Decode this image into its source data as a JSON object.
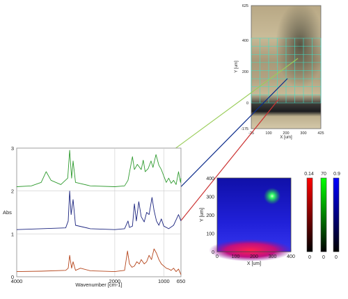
{
  "spectrum_panel": {
    "xlabel": "Wavenumber [cm-1]",
    "ylabel": "Abs",
    "x_ticks": [
      "4000",
      "2000",
      "1000",
      "650"
    ],
    "y_ticks": [
      "0",
      "1",
      "2",
      "3"
    ]
  },
  "micrograph": {
    "xlabel": "X [um]",
    "ylabel": "Y [um]",
    "x_ticks": [
      "-25",
      "100",
      "200",
      "300",
      "425"
    ],
    "y_ticks": [
      "625",
      "400",
      "200",
      "0",
      "-175"
    ]
  },
  "map_panel": {
    "xlabel": "X [um]",
    "ylabel": "Y [um]",
    "x_ticks": [
      "0",
      "100",
      "200",
      "300",
      "400"
    ],
    "y_ticks": [
      "400",
      "300",
      "200",
      "100",
      "0"
    ]
  },
  "colorbars": [
    {
      "color": "#ff0000",
      "max_label": "0.14",
      "min_label": "0"
    },
    {
      "color": "#00ff00",
      "max_label": "70",
      "min_label": "0"
    },
    {
      "color": "#0000ff",
      "max_label": "0.9",
      "min_label": "0"
    }
  ],
  "arrows": [
    {
      "color": "#9acd5a"
    },
    {
      "color": "#0a2a8a"
    },
    {
      "color": "#cc3333"
    }
  ],
  "chart_data": {
    "type": "line",
    "xlabel": "Wavenumber [cm-1]",
    "ylabel": "Abs",
    "xlim": [
      4000,
      650
    ],
    "ylim": [
      0,
      3
    ],
    "x_reversed": true,
    "series": [
      {
        "color": "#2e9a2e",
        "points": [
          [
            4000,
            2.1
          ],
          [
            3700,
            2.12
          ],
          [
            3500,
            2.2
          ],
          [
            3400,
            2.45
          ],
          [
            3300,
            2.25
          ],
          [
            3100,
            2.15
          ],
          [
            2960,
            2.3
          ],
          [
            2920,
            2.95
          ],
          [
            2880,
            2.3
          ],
          [
            2850,
            2.7
          ],
          [
            2800,
            2.2
          ],
          [
            2500,
            2.12
          ],
          [
            2000,
            2.1
          ],
          [
            1800,
            2.12
          ],
          [
            1730,
            2.25
          ],
          [
            1640,
            2.8
          ],
          [
            1600,
            2.5
          ],
          [
            1540,
            2.62
          ],
          [
            1460,
            2.5
          ],
          [
            1420,
            2.72
          ],
          [
            1380,
            2.45
          ],
          [
            1320,
            2.52
          ],
          [
            1260,
            2.7
          ],
          [
            1220,
            2.55
          ],
          [
            1160,
            2.85
          ],
          [
            1100,
            2.6
          ],
          [
            1050,
            2.5
          ],
          [
            1000,
            2.35
          ],
          [
            950,
            2.2
          ],
          [
            900,
            2.3
          ],
          [
            850,
            2.18
          ],
          [
            800,
            2.25
          ],
          [
            750,
            2.15
          ],
          [
            700,
            2.45
          ],
          [
            660,
            2.2
          ],
          [
            650,
            2.3
          ]
        ]
      },
      {
        "color": "#1a237e",
        "points": [
          [
            4000,
            1.1
          ],
          [
            3500,
            1.12
          ],
          [
            3000,
            1.14
          ],
          [
            2950,
            1.3
          ],
          [
            2920,
            2.0
          ],
          [
            2890,
            1.45
          ],
          [
            2850,
            1.8
          ],
          [
            2800,
            1.2
          ],
          [
            2500,
            1.12
          ],
          [
            2000,
            1.1
          ],
          [
            1800,
            1.12
          ],
          [
            1730,
            1.3
          ],
          [
            1700,
            1.15
          ],
          [
            1640,
            1.18
          ],
          [
            1600,
            1.7
          ],
          [
            1560,
            1.3
          ],
          [
            1510,
            1.75
          ],
          [
            1460,
            1.4
          ],
          [
            1400,
            1.28
          ],
          [
            1350,
            1.5
          ],
          [
            1300,
            1.45
          ],
          [
            1240,
            1.85
          ],
          [
            1200,
            1.55
          ],
          [
            1150,
            1.3
          ],
          [
            1100,
            1.2
          ],
          [
            1050,
            1.35
          ],
          [
            1000,
            1.18
          ],
          [
            900,
            1.12
          ],
          [
            800,
            1.2
          ],
          [
            700,
            1.45
          ],
          [
            650,
            1.3
          ]
        ]
      },
      {
        "color": "#b5451b",
        "points": [
          [
            4000,
            0.12
          ],
          [
            3500,
            0.13
          ],
          [
            3000,
            0.15
          ],
          [
            2950,
            0.2
          ],
          [
            2920,
            0.5
          ],
          [
            2880,
            0.2
          ],
          [
            2850,
            0.35
          ],
          [
            2800,
            0.15
          ],
          [
            2700,
            0.2
          ],
          [
            2500,
            0.14
          ],
          [
            2000,
            0.12
          ],
          [
            1800,
            0.15
          ],
          [
            1740,
            0.6
          ],
          [
            1700,
            0.3
          ],
          [
            1650,
            0.22
          ],
          [
            1600,
            0.25
          ],
          [
            1550,
            0.35
          ],
          [
            1500,
            0.3
          ],
          [
            1460,
            0.4
          ],
          [
            1400,
            0.3
          ],
          [
            1350,
            0.35
          ],
          [
            1300,
            0.5
          ],
          [
            1250,
            0.4
          ],
          [
            1200,
            0.65
          ],
          [
            1150,
            0.55
          ],
          [
            1100,
            0.4
          ],
          [
            1050,
            0.3
          ],
          [
            1000,
            0.25
          ],
          [
            950,
            0.2
          ],
          [
            900,
            0.18
          ],
          [
            850,
            0.15
          ],
          [
            800,
            0.2
          ],
          [
            750,
            0.12
          ],
          [
            700,
            0.18
          ],
          [
            650,
            0.05
          ]
        ]
      }
    ]
  }
}
